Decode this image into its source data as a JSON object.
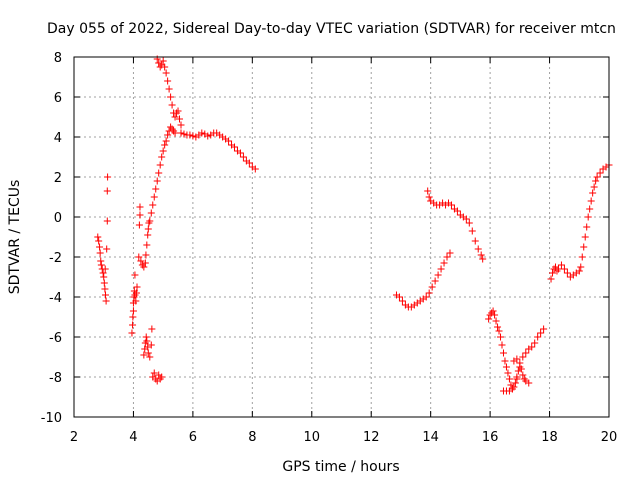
{
  "chart_data": {
    "type": "scatter",
    "title": "Day 055 of 2022, Sidereal Day-to-day VTEC variation (SDTVAR) for receiver mtcn",
    "xlabel": "GPS time / hours",
    "ylabel": "SDTVAR / TECUs",
    "xlim": [
      2,
      20
    ],
    "ylim": [
      -10,
      8
    ],
    "xticks": [
      2,
      4,
      6,
      8,
      10,
      12,
      14,
      16,
      18,
      20
    ],
    "yticks": [
      -10,
      -8,
      -6,
      -4,
      -2,
      0,
      2,
      4,
      6,
      8
    ],
    "grid": true,
    "marker": "plus",
    "color": "#ff0000",
    "series": [
      {
        "name": "SDTVAR",
        "points": [
          [
            2.8,
            -1.0
          ],
          [
            2.83,
            -1.2
          ],
          [
            2.86,
            -1.5
          ],
          [
            2.88,
            -1.8
          ],
          [
            2.9,
            -2.2
          ],
          [
            2.92,
            -2.4
          ],
          [
            2.95,
            -2.6
          ],
          [
            2.98,
            -2.8
          ],
          [
            3.0,
            -3.0
          ],
          [
            3.02,
            -3.3
          ],
          [
            3.04,
            -3.6
          ],
          [
            3.06,
            -3.9
          ],
          [
            3.08,
            -4.2
          ],
          [
            3.05,
            -2.6
          ],
          [
            3.1,
            -1.6
          ],
          [
            3.12,
            -0.2
          ],
          [
            3.12,
            1.3
          ],
          [
            3.13,
            2.0
          ],
          [
            3.95,
            -5.8
          ],
          [
            3.97,
            -5.4
          ],
          [
            3.98,
            -5.0
          ],
          [
            4.0,
            -4.7
          ],
          [
            4.0,
            -4.3
          ],
          [
            4.02,
            -4.0
          ],
          [
            4.03,
            -3.7
          ],
          [
            4.05,
            -3.9
          ],
          [
            4.08,
            -4.2
          ],
          [
            4.1,
            -3.8
          ],
          [
            4.12,
            -3.5
          ],
          [
            4.05,
            -2.9
          ],
          [
            4.18,
            -2.0
          ],
          [
            4.2,
            -0.4
          ],
          [
            4.22,
            0.1
          ],
          [
            4.22,
            0.5
          ],
          [
            4.25,
            -2.2
          ],
          [
            4.3,
            -2.4
          ],
          [
            4.35,
            -2.5
          ],
          [
            4.4,
            -2.3
          ],
          [
            4.42,
            -1.9
          ],
          [
            4.45,
            -1.4
          ],
          [
            4.48,
            -0.9
          ],
          [
            4.5,
            -0.6
          ],
          [
            4.52,
            -0.3
          ],
          [
            4.35,
            -6.9
          ],
          [
            4.38,
            -6.6
          ],
          [
            4.4,
            -6.3
          ],
          [
            4.43,
            -6.0
          ],
          [
            4.45,
            -6.2
          ],
          [
            4.48,
            -6.5
          ],
          [
            4.5,
            -6.8
          ],
          [
            4.55,
            -7.0
          ],
          [
            4.6,
            -6.4
          ],
          [
            4.62,
            -5.6
          ],
          [
            4.65,
            -8.0
          ],
          [
            4.7,
            -7.8
          ],
          [
            4.75,
            -8.1
          ],
          [
            4.8,
            -8.2
          ],
          [
            4.85,
            -7.9
          ],
          [
            4.9,
            -8.1
          ],
          [
            4.95,
            -8.0
          ],
          [
            4.55,
            -0.2
          ],
          [
            4.6,
            0.2
          ],
          [
            4.65,
            0.6
          ],
          [
            4.7,
            1.0
          ],
          [
            4.75,
            1.4
          ],
          [
            4.8,
            1.8
          ],
          [
            4.85,
            2.2
          ],
          [
            4.9,
            2.6
          ],
          [
            4.95,
            3.0
          ],
          [
            5.0,
            3.3
          ],
          [
            5.05,
            3.6
          ],
          [
            5.1,
            3.8
          ],
          [
            5.15,
            4.1
          ],
          [
            5.2,
            4.3
          ],
          [
            5.25,
            4.5
          ],
          [
            5.3,
            4.4
          ],
          [
            5.35,
            4.3
          ],
          [
            5.4,
            4.2
          ],
          [
            4.8,
            7.9
          ],
          [
            4.85,
            7.7
          ],
          [
            4.9,
            7.5
          ],
          [
            4.95,
            7.6
          ],
          [
            5.0,
            7.8
          ],
          [
            5.05,
            7.5
          ],
          [
            5.1,
            7.2
          ],
          [
            5.15,
            6.8
          ],
          [
            5.2,
            6.4
          ],
          [
            5.25,
            6.0
          ],
          [
            5.3,
            5.6
          ],
          [
            5.35,
            5.2
          ],
          [
            5.4,
            5.0
          ],
          [
            5.45,
            5.2
          ],
          [
            5.5,
            5.3
          ],
          [
            5.55,
            4.9
          ],
          [
            5.6,
            4.6
          ],
          [
            5.6,
            4.2
          ],
          [
            5.7,
            4.15
          ],
          [
            5.8,
            4.1
          ],
          [
            5.9,
            4.1
          ],
          [
            6.0,
            4.05
          ],
          [
            6.1,
            4.0
          ],
          [
            6.2,
            4.1
          ],
          [
            6.3,
            4.2
          ],
          [
            6.4,
            4.15
          ],
          [
            6.5,
            4.05
          ],
          [
            6.6,
            4.1
          ],
          [
            6.7,
            4.2
          ],
          [
            6.8,
            4.2
          ],
          [
            6.9,
            4.1
          ],
          [
            7.0,
            4.0
          ],
          [
            7.1,
            3.9
          ],
          [
            7.2,
            3.8
          ],
          [
            7.3,
            3.6
          ],
          [
            7.4,
            3.5
          ],
          [
            7.5,
            3.3
          ],
          [
            7.6,
            3.2
          ],
          [
            7.7,
            3.0
          ],
          [
            7.8,
            2.8
          ],
          [
            7.9,
            2.7
          ],
          [
            8.0,
            2.5
          ],
          [
            8.1,
            2.4
          ],
          [
            12.85,
            -3.9
          ],
          [
            12.95,
            -4.0
          ],
          [
            13.05,
            -4.2
          ],
          [
            13.15,
            -4.4
          ],
          [
            13.25,
            -4.5
          ],
          [
            13.35,
            -4.5
          ],
          [
            13.45,
            -4.4
          ],
          [
            13.55,
            -4.3
          ],
          [
            13.65,
            -4.2
          ],
          [
            13.75,
            -4.1
          ],
          [
            13.85,
            -4.0
          ],
          [
            13.95,
            -3.8
          ],
          [
            14.05,
            -3.5
          ],
          [
            14.15,
            -3.2
          ],
          [
            14.25,
            -2.9
          ],
          [
            14.35,
            -2.6
          ],
          [
            14.45,
            -2.3
          ],
          [
            14.55,
            -2.0
          ],
          [
            14.65,
            -1.8
          ],
          [
            13.9,
            1.3
          ],
          [
            13.95,
            1.0
          ],
          [
            14.0,
            0.8
          ],
          [
            14.1,
            0.7
          ],
          [
            14.2,
            0.6
          ],
          [
            14.3,
            0.6
          ],
          [
            14.4,
            0.7
          ],
          [
            14.5,
            0.6
          ],
          [
            14.6,
            0.7
          ],
          [
            14.7,
            0.6
          ],
          [
            14.8,
            0.4
          ],
          [
            14.9,
            0.3
          ],
          [
            15.0,
            0.1
          ],
          [
            15.1,
            0.0
          ],
          [
            15.2,
            -0.1
          ],
          [
            15.3,
            -0.3
          ],
          [
            15.4,
            -0.7
          ],
          [
            15.5,
            -1.2
          ],
          [
            15.6,
            -1.6
          ],
          [
            15.7,
            -1.9
          ],
          [
            15.75,
            -2.1
          ],
          [
            15.95,
            -5.1
          ],
          [
            16.0,
            -4.9
          ],
          [
            16.05,
            -4.8
          ],
          [
            16.1,
            -4.7
          ],
          [
            16.15,
            -4.9
          ],
          [
            16.2,
            -5.2
          ],
          [
            16.25,
            -5.5
          ],
          [
            16.3,
            -5.7
          ],
          [
            16.35,
            -6.0
          ],
          [
            16.4,
            -6.4
          ],
          [
            16.45,
            -6.8
          ],
          [
            16.5,
            -7.2
          ],
          [
            16.55,
            -7.5
          ],
          [
            16.6,
            -7.8
          ],
          [
            16.65,
            -8.1
          ],
          [
            16.7,
            -8.4
          ],
          [
            16.75,
            -8.6
          ],
          [
            16.8,
            -8.5
          ],
          [
            16.85,
            -8.3
          ],
          [
            16.9,
            -8.1
          ],
          [
            16.95,
            -7.7
          ],
          [
            16.45,
            -8.7
          ],
          [
            16.55,
            -8.7
          ],
          [
            16.65,
            -8.7
          ],
          [
            16.75,
            -8.6
          ],
          [
            16.8,
            -7.2
          ],
          [
            16.9,
            -7.1
          ],
          [
            17.0,
            -7.3
          ],
          [
            17.05,
            -7.6
          ],
          [
            17.1,
            -7.9
          ],
          [
            17.15,
            -8.1
          ],
          [
            17.2,
            -8.2
          ],
          [
            17.3,
            -8.3
          ],
          [
            16.9,
            -8.0
          ],
          [
            17.0,
            -7.5
          ],
          [
            17.1,
            -7.0
          ],
          [
            17.2,
            -6.8
          ],
          [
            17.3,
            -6.6
          ],
          [
            17.4,
            -6.5
          ],
          [
            17.5,
            -6.3
          ],
          [
            17.6,
            -6.0
          ],
          [
            17.7,
            -5.8
          ],
          [
            17.8,
            -5.6
          ],
          [
            18.05,
            -3.1
          ],
          [
            18.1,
            -2.8
          ],
          [
            18.15,
            -2.6
          ],
          [
            18.2,
            -2.5
          ],
          [
            18.25,
            -2.7
          ],
          [
            18.3,
            -2.6
          ],
          [
            18.4,
            -2.4
          ],
          [
            18.5,
            -2.6
          ],
          [
            18.6,
            -2.8
          ],
          [
            18.7,
            -3.0
          ],
          [
            18.8,
            -2.9
          ],
          [
            18.9,
            -2.8
          ],
          [
            19.0,
            -2.7
          ],
          [
            19.05,
            -2.5
          ],
          [
            19.1,
            -2.0
          ],
          [
            19.15,
            -1.5
          ],
          [
            19.2,
            -1.0
          ],
          [
            19.25,
            -0.5
          ],
          [
            19.3,
            0.0
          ],
          [
            19.35,
            0.4
          ],
          [
            19.4,
            0.8
          ],
          [
            19.45,
            1.2
          ],
          [
            19.5,
            1.5
          ],
          [
            19.55,
            1.8
          ],
          [
            19.6,
            2.0
          ],
          [
            19.7,
            2.2
          ],
          [
            19.8,
            2.4
          ],
          [
            19.9,
            2.5
          ],
          [
            20.0,
            2.6
          ]
        ]
      }
    ]
  }
}
